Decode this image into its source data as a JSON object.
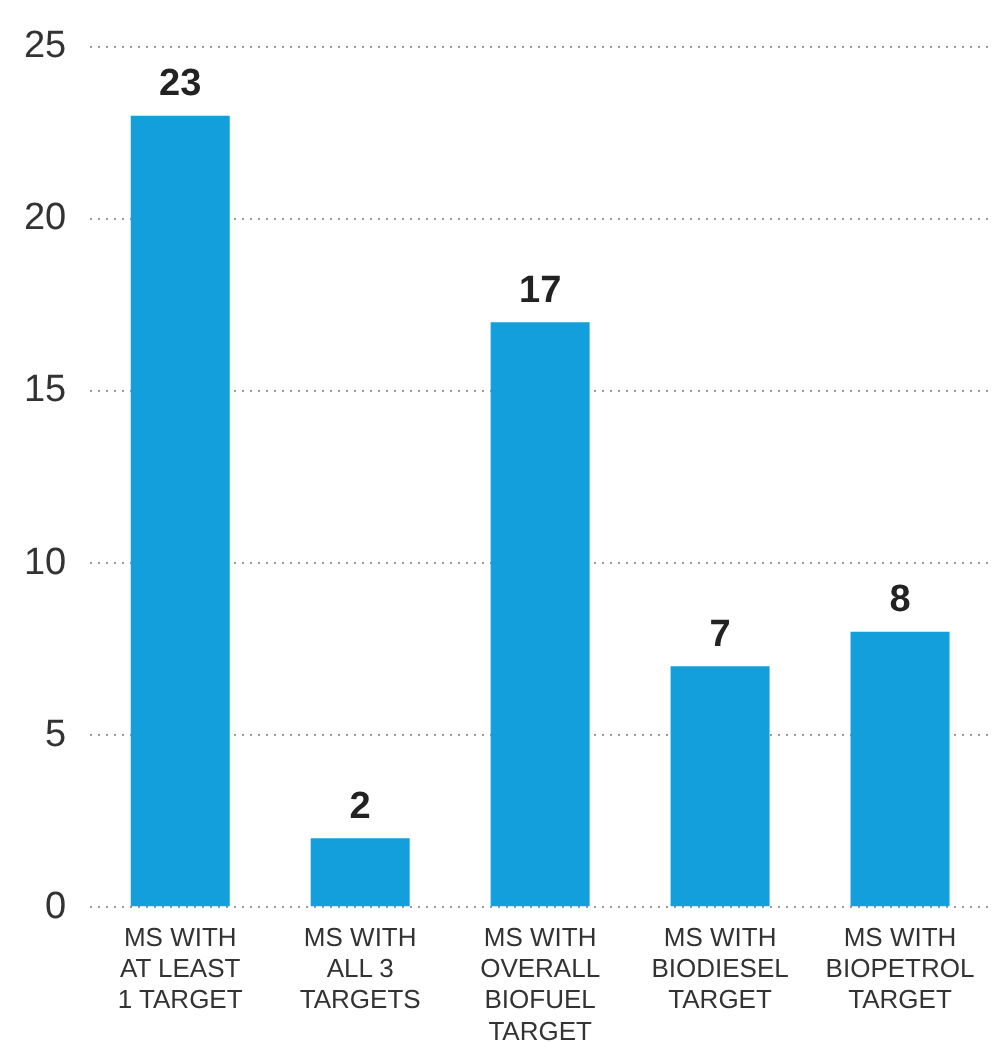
{
  "chart_data": {
    "type": "bar",
    "categories": [
      "MS WITH\nAT LEAST\n1 TARGET",
      "MS WITH\nALL 3\nTARGETS",
      "MS WITH\nOVERALL\nBIOFUEL\nTARGET",
      "MS WITH\nBIODIESEL\nTARGET",
      "MS WITH\nBIOPETROL\nTARGET"
    ],
    "values": [
      23,
      2,
      17,
      7,
      8
    ],
    "color": "#129fdb",
    "ylim": [
      0,
      25
    ],
    "yticks": [
      0,
      5,
      10,
      15,
      20,
      25
    ],
    "grid": "y",
    "data_labels": true,
    "legend": false
  }
}
